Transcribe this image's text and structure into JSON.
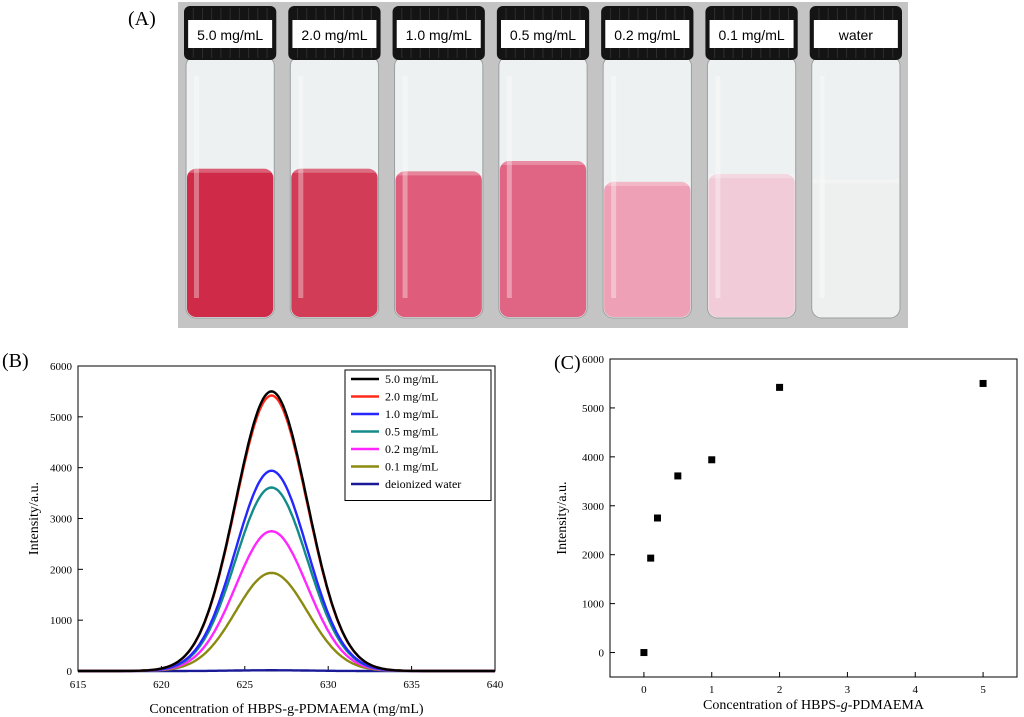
{
  "panels": {
    "a": "(A)",
    "b": "(B)",
    "c": "(C)"
  },
  "photo": {
    "vials": [
      {
        "label": "5.0 mg/mL",
        "liquid_color": "#cf2a48",
        "fill_level": 0.6
      },
      {
        "label": "2.0 mg/mL",
        "liquid_color": "#d23c57",
        "fill_level": 0.6
      },
      {
        "label": "1.0 mg/mL",
        "liquid_color": "#df5c7a",
        "fill_level": 0.59
      },
      {
        "label": "0.5 mg/mL",
        "liquid_color": "#e06585",
        "fill_level": 0.63
      },
      {
        "label": "0.2 mg/mL",
        "liquid_color": "#eea0b6",
        "fill_level": 0.55
      },
      {
        "label": "0.1 mg/mL",
        "liquid_color": "#f1cbd7",
        "fill_level": 0.58
      },
      {
        "label": "water",
        "liquid_color": "#eef0f0",
        "fill_level": 0.56
      }
    ],
    "colors": {
      "background": "#c4c4c4",
      "cap": "#141414",
      "glass": "#eef1f1"
    }
  },
  "chart_data": [
    {
      "type": "line",
      "xlabel": "Concentration of HBPS-g-PDMAEMA (mg/mL)",
      "ylabel": "Intensity/a.u.",
      "xlim": [
        615,
        640
      ],
      "ylim": [
        0,
        6000
      ],
      "xticks": [
        615,
        620,
        625,
        630,
        635,
        640
      ],
      "yticks": [
        0,
        1000,
        2000,
        3000,
        4000,
        5000,
        6000
      ],
      "peak_center": 626.6,
      "peak_sigma": 2.15,
      "legend_position": "top-right",
      "series": [
        {
          "name": "5.0 mg/mL",
          "peak": 5500,
          "color": "#000000"
        },
        {
          "name": "2.0 mg/mL",
          "peak": 5420,
          "color": "#ff2a1a"
        },
        {
          "name": "1.0 mg/mL",
          "peak": 3940,
          "color": "#2626ff"
        },
        {
          "name": "0.5 mg/mL",
          "peak": 3610,
          "color": "#138b8b"
        },
        {
          "name": "0.2 mg/mL",
          "peak": 2750,
          "color": "#ff26ff"
        },
        {
          "name": "0.1 mg/mL",
          "peak": 1930,
          "color": "#8a8a10"
        },
        {
          "name": "deionized water",
          "peak": 15,
          "color": "#1a1a99"
        }
      ]
    },
    {
      "type": "scatter",
      "xlabel": "Concentration of HBPS-g-PDMAEMA",
      "xlabel_parts": [
        "Concentration of HBPS-",
        "g",
        "-PDMAEMA"
      ],
      "ylabel": "Intensity/a.u.",
      "xlim": [
        -0.5,
        5.5
      ],
      "ylim": [
        -500,
        6000
      ],
      "xticks": [
        0,
        1,
        2,
        3,
        4,
        5
      ],
      "yticks": [
        0,
        1000,
        2000,
        3000,
        4000,
        5000,
        6000
      ],
      "x": [
        0,
        0.1,
        0.2,
        0.5,
        1.0,
        2.0,
        5.0
      ],
      "y": [
        0,
        1930,
        2750,
        3610,
        3940,
        5420,
        5500
      ]
    }
  ]
}
